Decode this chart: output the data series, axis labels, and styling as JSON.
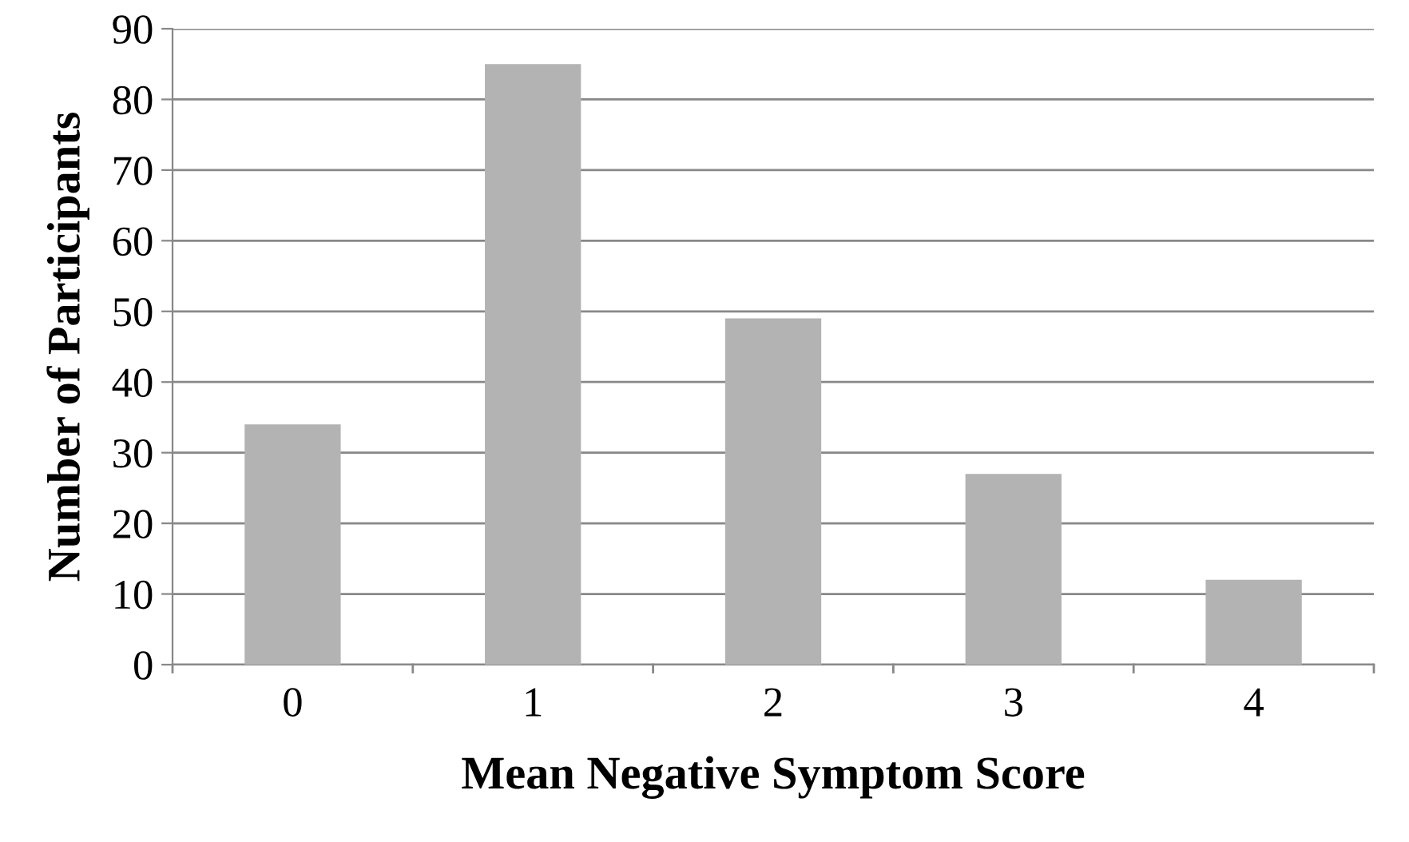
{
  "chart_data": {
    "type": "bar",
    "xlabel": "Mean Negative Symptom Score",
    "ylabel": "Number of Participants",
    "categories": [
      "0",
      "1",
      "2",
      "3",
      "4"
    ],
    "values": [
      34,
      85,
      49,
      27,
      12
    ],
    "color": "#b3b3b3",
    "ylim": [
      0,
      90
    ],
    "yticks": [
      0,
      10,
      20,
      30,
      40,
      50,
      60,
      70,
      80,
      90
    ],
    "grid": "y"
  }
}
